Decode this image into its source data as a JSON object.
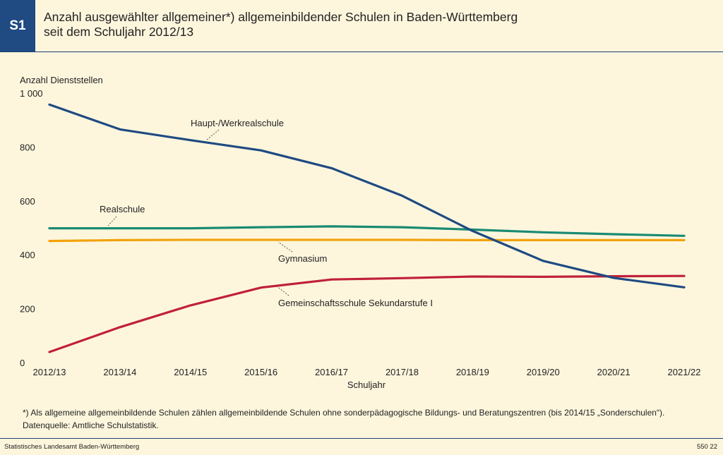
{
  "header": {
    "badge": "S1",
    "title_line1": "Anzahl ausgewählter allgemeiner*) allgemeinbildender Schulen in Baden-Württemberg",
    "title_line2": "seit dem Schuljahr 2012/13"
  },
  "chart_data": {
    "type": "line",
    "ylabel": "Anzahl Dienststellen",
    "xlabel": "Schuljahr",
    "ylim": [
      0,
      1000
    ],
    "yticks": [
      "0",
      "200",
      "400",
      "600",
      "800",
      "1 000"
    ],
    "ytick_values": [
      0,
      200,
      400,
      600,
      800,
      1000
    ],
    "categories": [
      "2012/13",
      "2013/14",
      "2014/15",
      "2015/16",
      "2016/17",
      "2017/18",
      "2018/19",
      "2019/20",
      "2020/21",
      "2021/22"
    ],
    "grid": false,
    "series": [
      {
        "name": "Haupt-/Werkrealschule",
        "color": "#1f4a82",
        "values": [
          960,
          868,
          828,
          790,
          724,
          622,
          491,
          380,
          317,
          282
        ]
      },
      {
        "name": "Realschule",
        "color": "#1a8a72",
        "values": [
          501,
          501,
          501,
          505,
          508,
          505,
          496,
          486,
          479,
          473
        ]
      },
      {
        "name": "Gymnasium",
        "color": "#f2a20c",
        "values": [
          454,
          457,
          458,
          458,
          458,
          458,
          457,
          457,
          457,
          457
        ]
      },
      {
        "name": "Gemeinschaftsschule Sekundarstufe I",
        "color": "#c0203b",
        "values": [
          42,
          134,
          215,
          281,
          311,
          316,
          322,
          321,
          323,
          324
        ]
      }
    ]
  },
  "footer": {
    "note": "*) Als allgemeine allgemeinbildende Schulen zählen allgemeinbildende Schulen ohne sonderpädagogische Bildungs- und Beratungszentren (bis 2014/15 „Sonderschulen“).",
    "source": "Datenquelle: Amtliche Schulstatistik.",
    "publisher": "Statistisches Landesamt Baden-Württemberg",
    "code": "550 22"
  }
}
